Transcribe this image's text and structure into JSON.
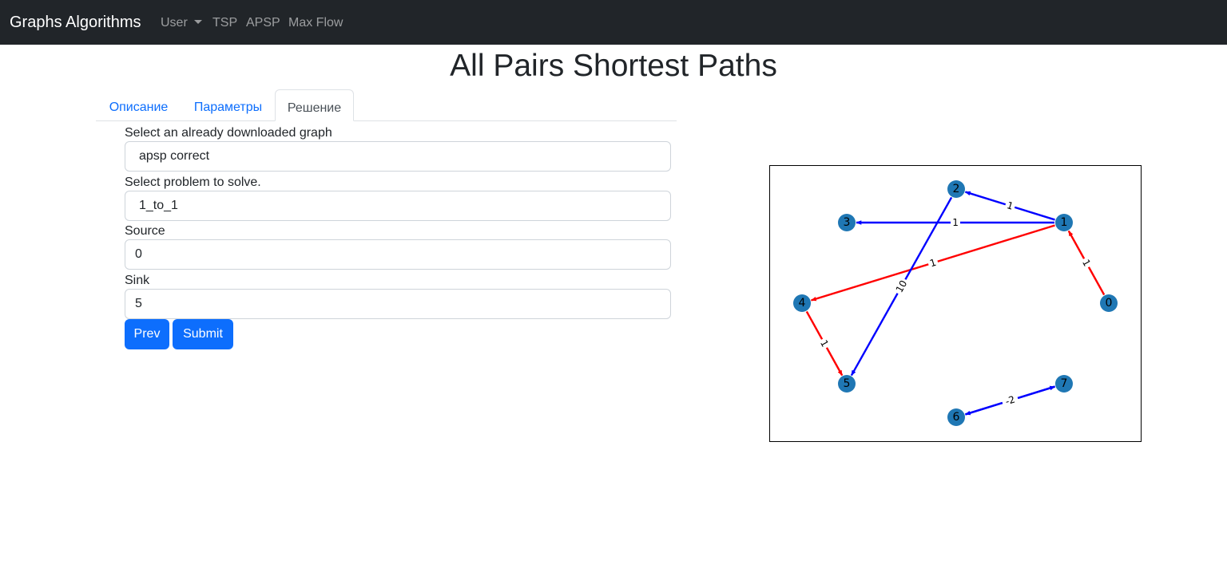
{
  "nav": {
    "brand": "Graphs Algorithms",
    "items": [
      "User",
      "TSP",
      "APSP",
      "Max Flow"
    ]
  },
  "page": {
    "title": "All Pairs Shortest Paths"
  },
  "tabs": [
    {
      "label": "Описание",
      "active": false
    },
    {
      "label": "Параметры",
      "active": false
    },
    {
      "label": "Решение",
      "active": true
    }
  ],
  "form": {
    "graph_label": "Select an already downloaded graph",
    "graph_value": "apsp correct",
    "problem_label": "Select problem to solve.",
    "problem_value": "1_to_1",
    "source_label": "Source",
    "source_value": "0",
    "sink_label": "Sink",
    "sink_value": "5",
    "prev_label": "Prev",
    "submit_label": "Submit"
  },
  "graph": {
    "nodes": [
      "0",
      "1",
      "2",
      "3",
      "4",
      "5",
      "6",
      "7"
    ],
    "edges": [
      {
        "from": "1",
        "to": "2",
        "weight": "1",
        "color": "#0000ff"
      },
      {
        "from": "1",
        "to": "3",
        "weight": "1",
        "color": "#0000ff"
      },
      {
        "from": "1",
        "to": "4",
        "weight": "1",
        "color": "#ff0000"
      },
      {
        "from": "0",
        "to": "1",
        "weight": "1",
        "color": "#ff0000"
      },
      {
        "from": "2",
        "to": "5",
        "weight": "10",
        "color": "#0000ff"
      },
      {
        "from": "4",
        "to": "5",
        "weight": "1",
        "color": "#ff0000"
      },
      {
        "from": "6",
        "to": "7",
        "weight": "-2",
        "color": "#0000ff"
      },
      {
        "from": "7",
        "to": "6",
        "weight": "-2",
        "color": "#0000ff"
      }
    ],
    "node_color": "#1f77b4"
  }
}
